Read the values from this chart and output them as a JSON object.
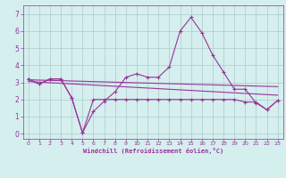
{
  "x": [
    0,
    1,
    2,
    3,
    4,
    5,
    6,
    7,
    8,
    9,
    10,
    11,
    12,
    13,
    14,
    15,
    16,
    17,
    18,
    19,
    20,
    21,
    22,
    23
  ],
  "line1": [
    3.2,
    2.9,
    3.2,
    3.2,
    2.1,
    0.05,
    1.3,
    1.9,
    2.45,
    3.3,
    3.5,
    3.3,
    3.3,
    3.9,
    6.0,
    6.8,
    5.9,
    4.6,
    3.6,
    2.6,
    2.6,
    1.8,
    1.4,
    1.95
  ],
  "line2": [
    3.2,
    2.9,
    3.2,
    3.2,
    2.1,
    0.05,
    2.0,
    2.0,
    2.0,
    2.0,
    2.0,
    2.0,
    2.0,
    2.0,
    2.0,
    2.0,
    2.0,
    2.0,
    2.0,
    2.0,
    1.85,
    1.85,
    1.4,
    1.95
  ],
  "line3_x": [
    0,
    23
  ],
  "line3_y": [
    3.15,
    2.75
  ],
  "line4_x": [
    0,
    23
  ],
  "line4_y": [
    3.05,
    2.25
  ],
  "color": "#993399",
  "bg_color": "#d5eeee",
  "grid_color": "#aacccc",
  "xlabel": "Windchill (Refroidissement éolien,°C)",
  "ylim": [
    -0.3,
    7.5
  ],
  "xlim": [
    -0.5,
    23.5
  ],
  "yticks": [
    0,
    1,
    2,
    3,
    4,
    5,
    6,
    7
  ],
  "xticks": [
    0,
    1,
    2,
    3,
    4,
    5,
    6,
    7,
    8,
    9,
    10,
    11,
    12,
    13,
    14,
    15,
    16,
    17,
    18,
    19,
    20,
    21,
    22,
    23
  ]
}
